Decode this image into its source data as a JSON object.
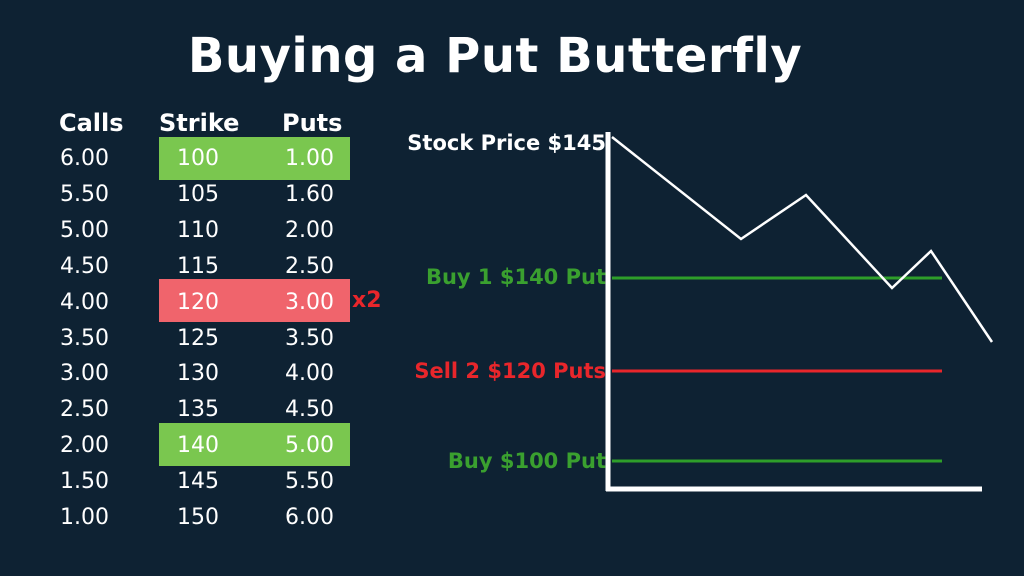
{
  "title": "Buying a Put Butterfly",
  "table": {
    "headers": {
      "calls": "Calls",
      "strike": "Strike",
      "puts": "Puts"
    },
    "rows": [
      {
        "calls": "6.00",
        "strike": "100",
        "puts": "1.00"
      },
      {
        "calls": "5.50",
        "strike": "105",
        "puts": "1.60"
      },
      {
        "calls": "5.00",
        "strike": "110",
        "puts": "2.00"
      },
      {
        "calls": "4.50",
        "strike": "115",
        "puts": "2.50"
      },
      {
        "calls": "4.00",
        "strike": "120",
        "puts": "3.00"
      },
      {
        "calls": "3.50",
        "strike": "125",
        "puts": "3.50"
      },
      {
        "calls": "3.00",
        "strike": "130",
        "puts": "4.00"
      },
      {
        "calls": "2.50",
        "strike": "135",
        "puts": "4.50"
      },
      {
        "calls": "2.00",
        "strike": "140",
        "puts": "5.00"
      },
      {
        "calls": "1.50",
        "strike": "145",
        "puts": "5.50"
      },
      {
        "calls": "1.00",
        "strike": "150",
        "puts": "6.00"
      }
    ],
    "quantity_marker": "x2"
  },
  "diagram": {
    "stock_label": "Stock Price $145",
    "buy_upper_label": "Buy 1 $140 Put",
    "sell_middle_label": "Sell 2 $120 Puts",
    "buy_lower_label": "Buy $100 Put"
  },
  "colors": {
    "background": "#0e2233",
    "buy_highlight": "#7ac74f",
    "sell_highlight": "#f0646c",
    "buy_line": "#2e9e2a",
    "sell_line": "#e8262b",
    "sell_text": "#e8262b",
    "buy_text": "#3aa02f"
  }
}
